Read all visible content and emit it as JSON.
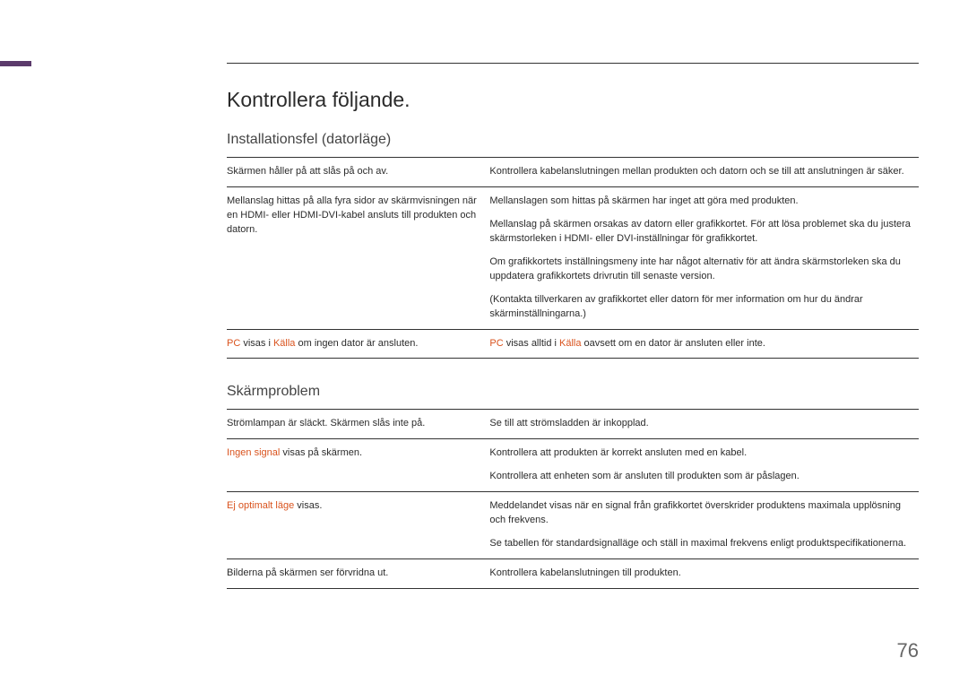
{
  "accent_color": "#5b3a6b",
  "highlight_color": "#d9531e",
  "main_title": "Kontrollera följande.",
  "page_number": "76",
  "section1": {
    "title": "Installationsfel (datorläge)",
    "rows": [
      {
        "left": [
          {
            "t": "Skärmen håller på att slås på och av."
          }
        ],
        "right": [
          {
            "t": "Kontrollera kabelanslutningen mellan produkten och datorn och se till att anslutningen är säker."
          }
        ]
      },
      {
        "left": [
          {
            "t": "Mellanslag hittas på alla fyra sidor av skärmvisningen när en HDMI- eller HDMI-DVI-kabel ansluts till produkten och datorn."
          }
        ],
        "right": [
          {
            "t": "Mellanslagen som hittas på skärmen har inget att göra med produkten."
          },
          {
            "t": "Mellanslag på skärmen orsakas av datorn eller grafikkortet. För att lösa problemet ska du justera skärmstorleken i HDMI- eller DVI-inställningar för grafikkortet."
          },
          {
            "t": "Om grafikkortets inställningsmeny inte har något alternativ för att ändra skärmstorleken ska du uppdatera grafikkortets drivrutin till senaste version."
          },
          {
            "t": "(Kontakta tillverkaren av grafikkortet eller datorn för mer information om hur du ändrar skärminställningarna.)"
          }
        ]
      },
      {
        "left": [
          {
            "t": "PC",
            "hl": true
          },
          {
            "t": " visas i "
          },
          {
            "t": "Källa",
            "hl": true
          },
          {
            "t": " om ingen dator är ansluten."
          }
        ],
        "right": [
          {
            "t": "PC",
            "hl": true
          },
          {
            "t": " visas alltid i "
          },
          {
            "t": "Källa",
            "hl": true
          },
          {
            "t": " oavsett om en dator är ansluten eller inte."
          }
        ]
      }
    ]
  },
  "section2": {
    "title": "Skärmproblem",
    "rows": [
      {
        "left": [
          {
            "t": "Strömlampan är släckt. Skärmen slås inte på."
          }
        ],
        "right": [
          {
            "t": "Se till att strömsladden är inkopplad."
          }
        ]
      },
      {
        "left": [
          {
            "t": "Ingen signal",
            "hl": true
          },
          {
            "t": " visas på skärmen."
          }
        ],
        "right": [
          {
            "t": "Kontrollera att produkten är korrekt ansluten med en kabel."
          },
          {
            "sub": true,
            "t": "Kontrollera att enheten som är ansluten till produkten som är påslagen."
          }
        ]
      },
      {
        "left": [
          {
            "t": "Ej optimalt läge",
            "hl": true
          },
          {
            "t": " visas."
          }
        ],
        "right": [
          {
            "t": "Meddelandet visas när en signal från grafikkortet överskrider produktens maximala upplösning och frekvens."
          },
          {
            "sub": true,
            "t": "Se tabellen för standardsignalläge och ställ in maximal frekvens enligt produktspecifikationerna."
          }
        ]
      },
      {
        "left": [
          {
            "t": "Bilderna på skärmen ser förvridna ut."
          }
        ],
        "right": [
          {
            "t": "Kontrollera kabelanslutningen till produkten."
          }
        ]
      }
    ]
  }
}
